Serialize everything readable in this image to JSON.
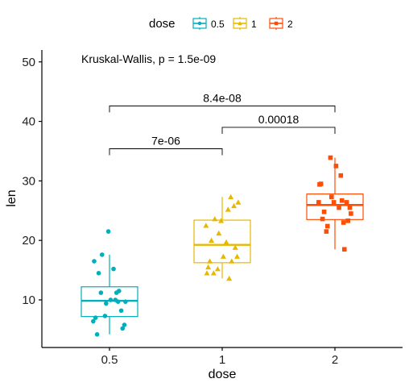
{
  "chart_data": {
    "type": "boxplot",
    "xlabel": "dose",
    "ylabel": "len",
    "ylim": [
      2,
      52
    ],
    "yticks": [
      10,
      20,
      30,
      40,
      50
    ],
    "categories": [
      "0.5",
      "1",
      "2"
    ],
    "legend": {
      "title": "dose",
      "position": "top",
      "entries": [
        "0.5",
        "1",
        "2"
      ]
    },
    "colors": {
      "0.5": "#00AFBB",
      "1": "#E7B800",
      "2": "#FC4E07"
    },
    "series": [
      {
        "name": "0.5",
        "box": {
          "whisker_low": 4.2,
          "q1": 7.2,
          "median": 9.85,
          "q3": 12.2,
          "whisker_high": 17.6
        },
        "points": [
          4.2,
          11.5,
          7.3,
          5.8,
          6.4,
          10.0,
          11.2,
          11.2,
          5.2,
          7.0,
          15.2,
          21.5,
          17.6,
          9.7,
          14.5,
          10.0,
          8.2,
          9.4,
          16.5,
          9.7
        ]
      },
      {
        "name": "1",
        "box": {
          "whisker_low": 13.6,
          "q1": 16.25,
          "median": 19.25,
          "q3": 23.4,
          "whisker_high": 27.3
        },
        "points": [
          16.5,
          16.5,
          15.2,
          17.3,
          22.5,
          17.3,
          13.6,
          14.5,
          18.8,
          15.5,
          19.7,
          23.3,
          23.6,
          26.4,
          20.0,
          25.2,
          25.8,
          21.2,
          14.5,
          27.3
        ]
      },
      {
        "name": "2",
        "box": {
          "whisker_low": 18.5,
          "q1": 23.5,
          "median": 25.95,
          "q3": 27.8,
          "whisker_high": 33.9
        },
        "points": [
          23.6,
          18.5,
          33.9,
          25.5,
          26.4,
          32.5,
          26.7,
          21.5,
          23.3,
          29.5,
          25.5,
          26.4,
          22.4,
          24.5,
          24.8,
          30.9,
          26.4,
          27.3,
          29.4,
          23.0
        ]
      }
    ],
    "annotations": {
      "global_test": "Kruskal-Wallis, p = 1.5e-09",
      "comparisons": [
        {
          "group1": "0.5",
          "group2": "1",
          "label": "7e-06"
        },
        {
          "group1": "1",
          "group2": "2",
          "label": "0.00018"
        },
        {
          "group1": "0.5",
          "group2": "2",
          "label": "8.4e-08"
        }
      ]
    }
  }
}
